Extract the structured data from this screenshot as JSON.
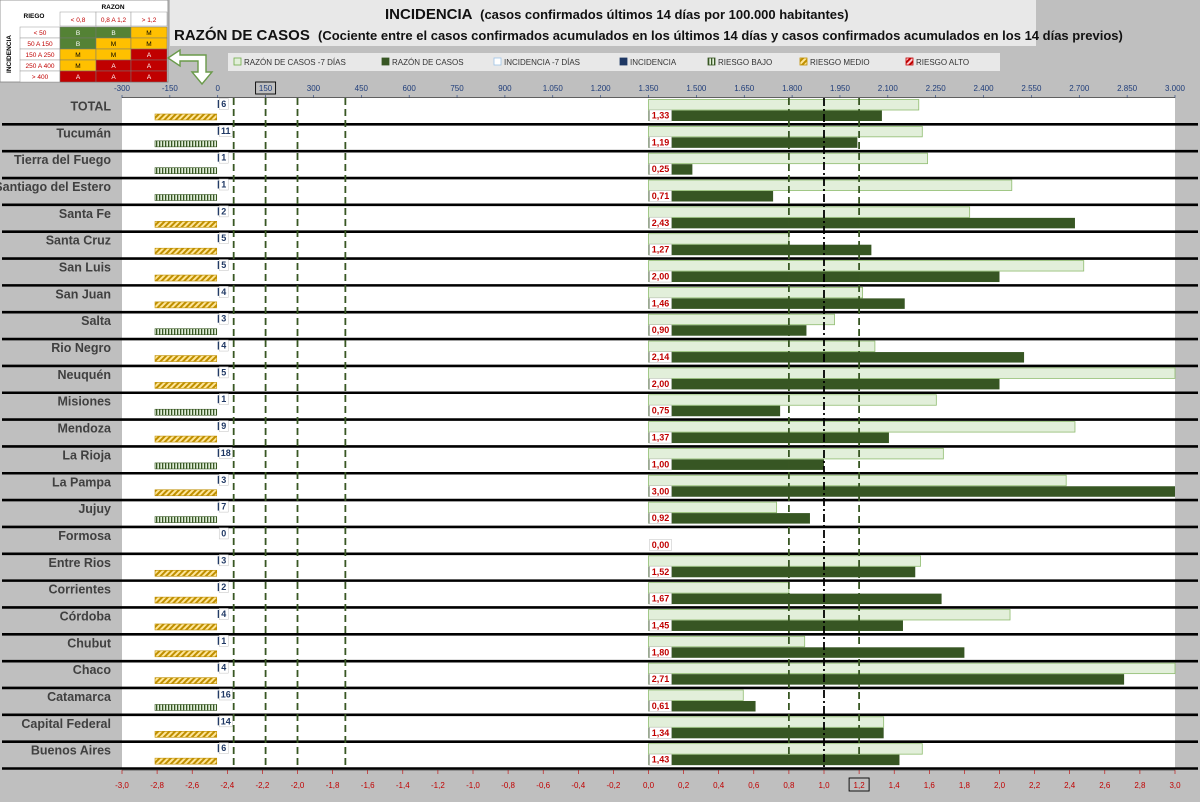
{
  "title": {
    "line1_main": "INCIDENCIA",
    "line1_sub": "(casos confirmados últimos 14 días por 100.000 habitantes)",
    "line2_main": "RAZÓN DE CASOS",
    "line2_sub": "(Cociente entre el casos confirmados acumulados en los últimos 14 días y casos confirmados acumulados en los 14 días previos)"
  },
  "risk_table": {
    "corner": "RIEGO",
    "razon_header": "RAZON",
    "incidencia_header": "INCIDENCIA",
    "col_headers": [
      "< 0,8",
      "0,8 A 1,2",
      "> 1,2"
    ],
    "rows": [
      {
        "label": "< 50",
        "cells": [
          "B",
          "B",
          "M"
        ]
      },
      {
        "label": "50 A 150",
        "cells": [
          "B",
          "M",
          "M"
        ]
      },
      {
        "label": "150 A 250",
        "cells": [
          "M",
          "M",
          "A"
        ]
      },
      {
        "label": "250 A 400",
        "cells": [
          "M",
          "A",
          "A"
        ]
      },
      {
        "label": "> 400",
        "cells": [
          "A",
          "A",
          "A"
        ]
      }
    ],
    "colors": {
      "B": "#548235",
      "M": "#ffc000",
      "A": "#c00000"
    }
  },
  "colors": {
    "ratio_prev": "#e2efda",
    "ratio": "#375623",
    "incidence": "#1f3864",
    "risk_low": "#385723",
    "risk_mid": "#bf8f00",
    "risk_high": "#c00000",
    "top_ticks": "#1f3d7a",
    "bottom_ticks": "#c00000"
  },
  "chart_data": {
    "type": "bar",
    "orientation": "horizontal",
    "legend": [
      "RAZÓN DE CASOS -7 DÍAS",
      "RAZÓN DE CASOS",
      "INCIDENCIA -7 DÍAS",
      "INCIDENCIA",
      "RIESGO BAJO",
      "RIESGO MEDIO",
      "RIESGO ALTO"
    ],
    "legend_position": "top",
    "top_axis": {
      "ticks": [
        "-300",
        "-150",
        "0",
        "150",
        "300",
        "450",
        "600",
        "750",
        "900",
        "1.050",
        "1.200",
        "1.350",
        "1.500",
        "1.650",
        "1.800",
        "1.950",
        "2.100",
        "2.250",
        "2.400",
        "2.550",
        "2.700",
        "2.850",
        "3.000"
      ],
      "range": [
        -300,
        3000
      ],
      "boxed_tick": "150"
    },
    "bottom_axis": {
      "ticks": [
        "-3,0",
        "-2,8",
        "-2,6",
        "-2,4",
        "-2,2",
        "-2,0",
        "-1,8",
        "-1,6",
        "-1,4",
        "-1,2",
        "-1,0",
        "-0,8",
        "-0,6",
        "-0,4",
        "-0,2",
        "0,0",
        "0,2",
        "0,4",
        "0,6",
        "0,8",
        "1,0",
        "1,2",
        "1,4",
        "1,6",
        "1,8",
        "2,0",
        "2,2",
        "2,4",
        "2,6",
        "2,8",
        "3,0"
      ],
      "range": [
        -3,
        3
      ],
      "boxed_tick": "1,2"
    },
    "reference_lines_incidence": [
      {
        "value": 50,
        "style": "dash"
      },
      {
        "value": 150,
        "style": "dash"
      },
      {
        "value": 250,
        "style": "dash"
      },
      {
        "value": 400,
        "style": "dash"
      }
    ],
    "reference_lines_ratio": [
      {
        "value": 0.8,
        "style": "dash"
      },
      {
        "value": 1.0,
        "style": "dashdot"
      },
      {
        "value": 1.2,
        "style": "dash"
      }
    ],
    "categories": [
      "TOTAL",
      "Tucumán",
      "Tierra del Fuego",
      "Santiago del Estero",
      "Santa Fe",
      "Santa Cruz",
      "San Luis",
      "San Juan",
      "Salta",
      "Rio Negro",
      "Neuquén",
      "Misiones",
      "Mendoza",
      "La Rioja",
      "La Pampa",
      "Jujuy",
      "Formosa",
      "Entre Rios",
      "Corrientes",
      "Córdoba",
      "Chubut",
      "Chaco",
      "Catamarca",
      "Capital Federal",
      "Buenos Aires"
    ],
    "series": [
      {
        "name": "RAZÓN DE CASOS -7 DÍAS",
        "values": [
          1.54,
          1.56,
          1.59,
          2.07,
          1.83,
          0.8,
          2.48,
          1.22,
          1.06,
          1.29,
          3.0,
          1.64,
          2.43,
          1.68,
          2.38,
          0.73,
          0.0,
          1.55,
          0.8,
          2.06,
          0.89,
          3.0,
          0.54,
          1.34,
          1.56
        ]
      },
      {
        "name": "RAZÓN DE CASOS",
        "values": [
          1.33,
          1.19,
          0.25,
          0.71,
          2.43,
          1.27,
          2.0,
          1.46,
          0.9,
          2.14,
          2.0,
          0.75,
          1.37,
          1.0,
          3.0,
          0.92,
          0.0,
          1.52,
          1.67,
          1.45,
          1.8,
          2.71,
          0.61,
          1.34,
          1.43
        ]
      },
      {
        "name": "INCIDENCIA",
        "values": [
          6,
          11,
          1,
          1,
          2,
          5,
          5,
          4,
          3,
          4,
          5,
          1,
          9,
          18,
          3,
          7,
          0,
          3,
          2,
          4,
          1,
          4,
          16,
          14,
          6
        ]
      },
      {
        "name": "RIESGO",
        "values": [
          "M",
          "B",
          "B",
          "B",
          "M",
          "M",
          "M",
          "M",
          "B",
          "M",
          "M",
          "B",
          "M",
          "B",
          "M",
          "B",
          "",
          "M",
          "M",
          "M",
          "M",
          "M",
          "B",
          "M",
          "M"
        ]
      }
    ],
    "ratio_labels": [
      "1,33",
      "1,19",
      "0,25",
      "0,71",
      "2,43",
      "1,27",
      "2,00",
      "1,46",
      "0,90",
      "2,14",
      "2,00",
      "0,75",
      "1,37",
      "1,00",
      "3,00",
      "0,92",
      "0,00",
      "1,52",
      "1,67",
      "1,45",
      "1,80",
      "2,71",
      "0,61",
      "1,34",
      "1,43"
    ]
  }
}
